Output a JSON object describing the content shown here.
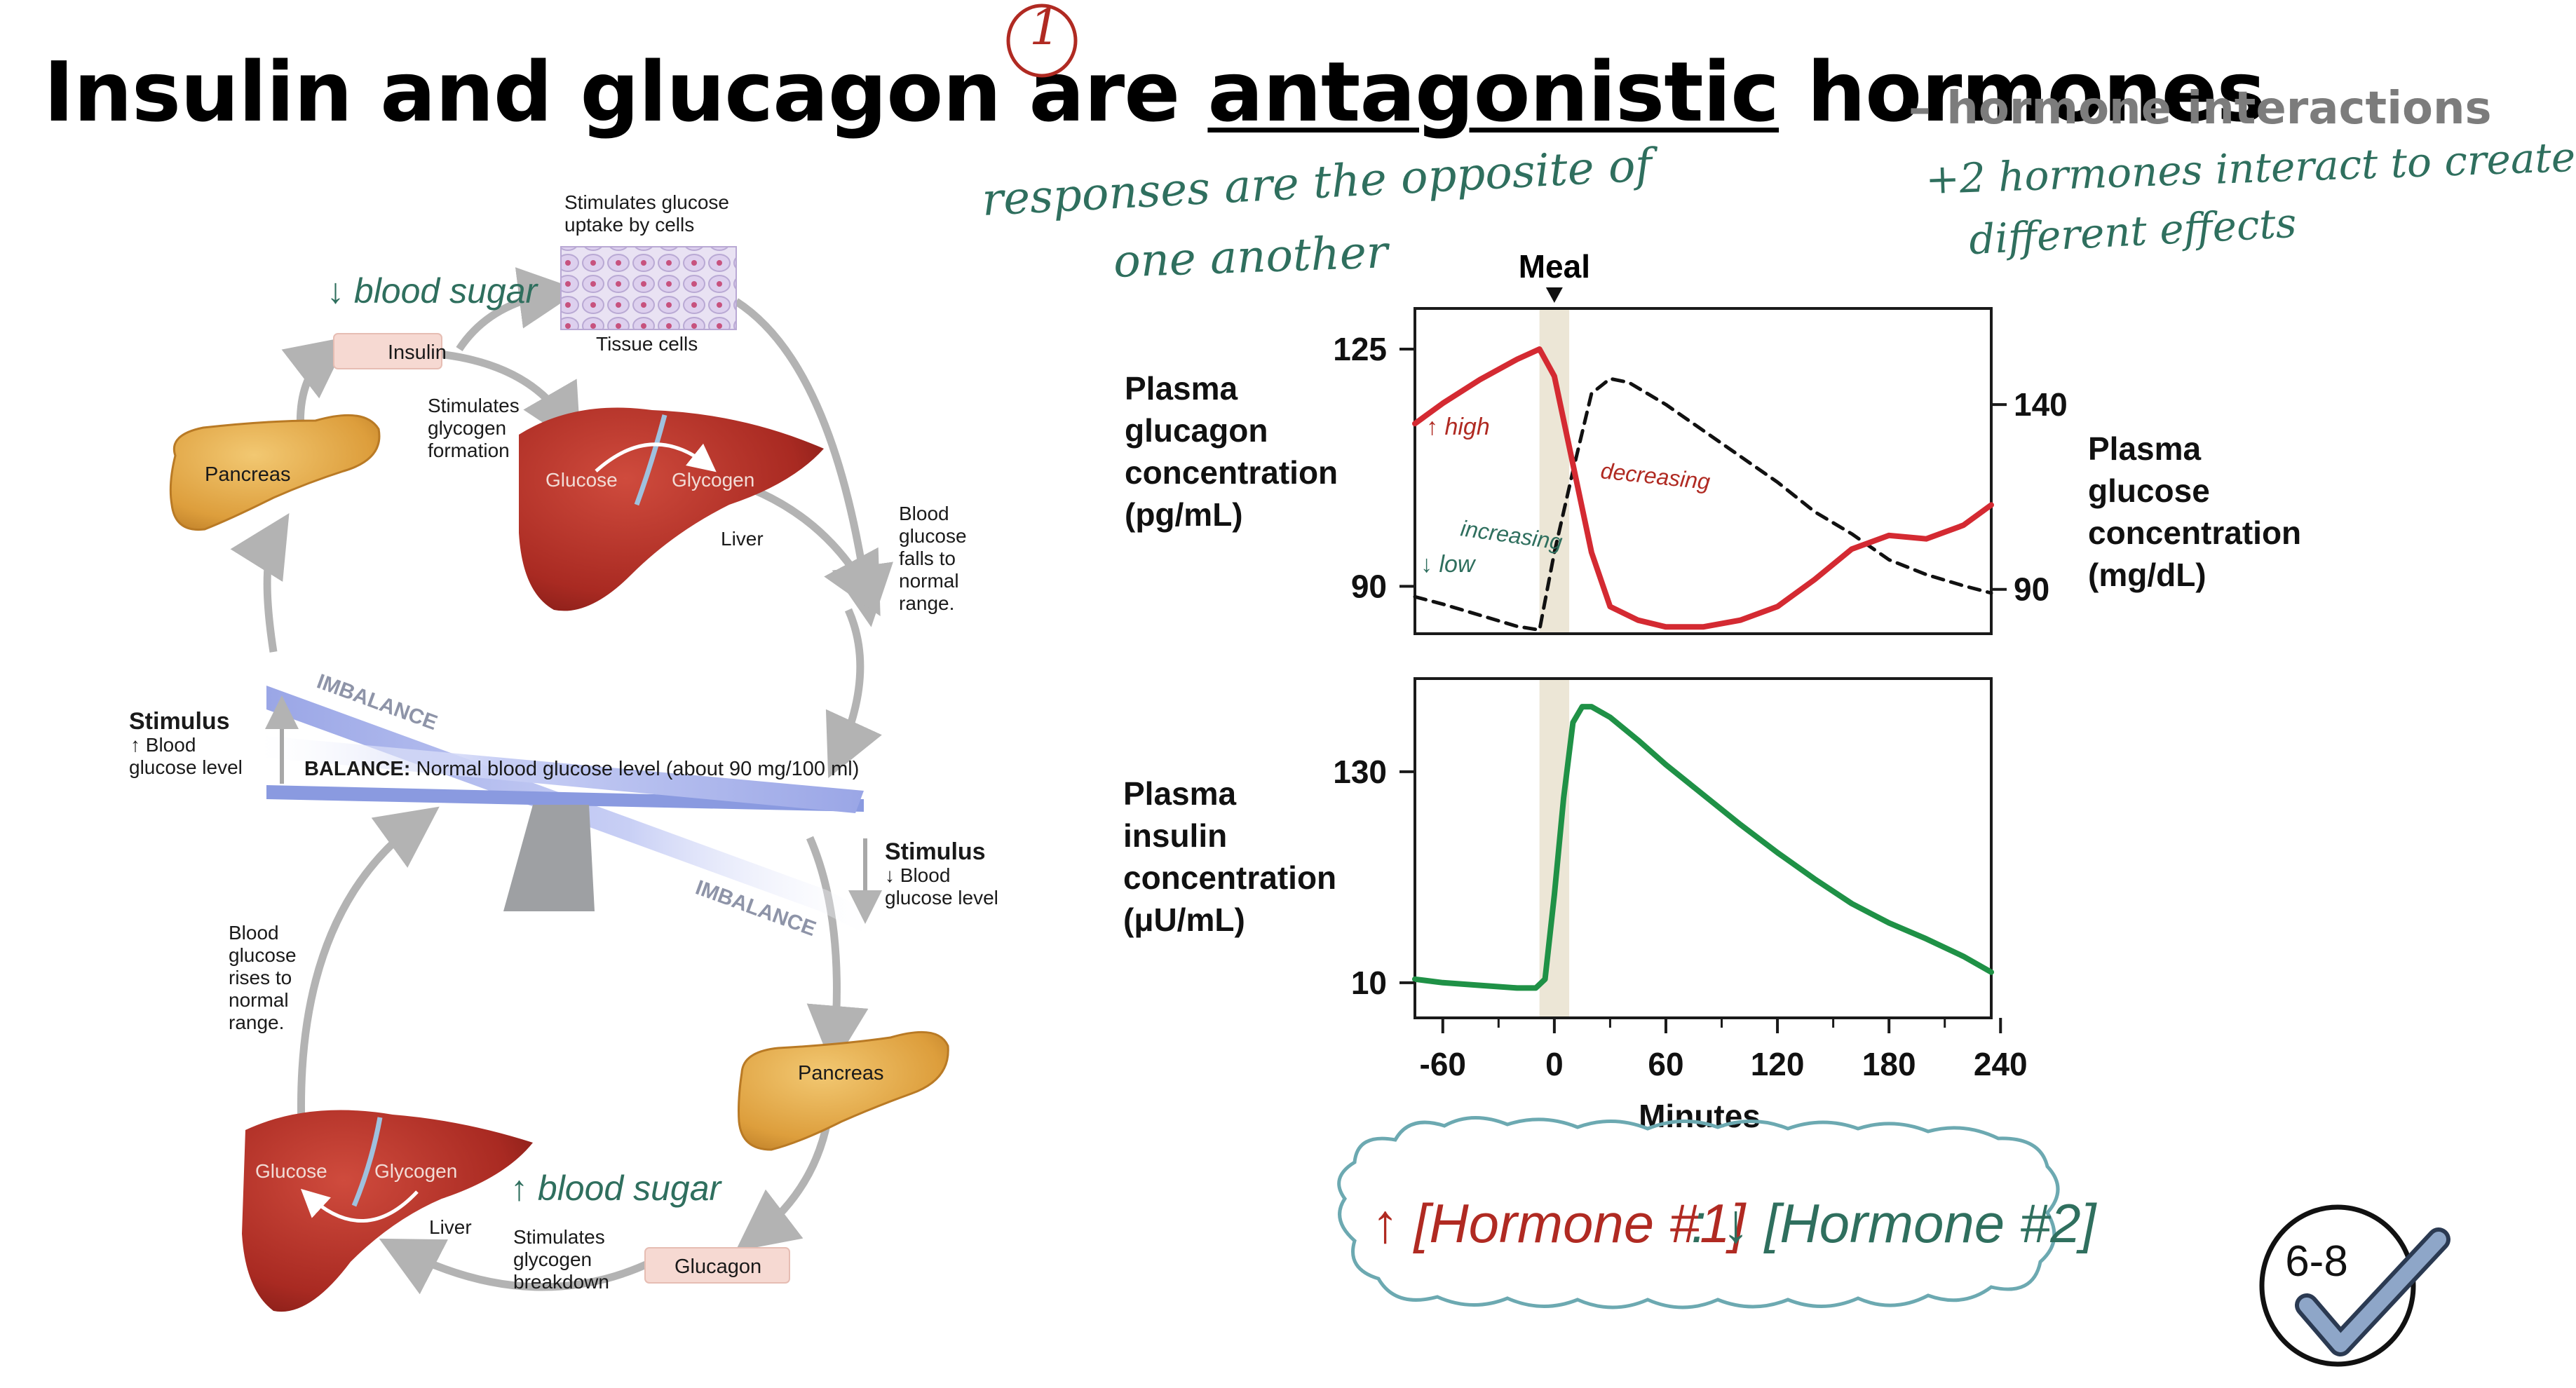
{
  "slide": {
    "title_parts": [
      "Insulin and glucagon are ",
      "antagonistic",
      " hormones"
    ],
    "subtitle": "– hormone interactions",
    "annotations": {
      "circle_number": "1",
      "antagonistic_note_1": "responses are the opposite of",
      "antagonistic_note_2": "one another",
      "interaction_note_1": "+2 hormones interact to create",
      "interaction_note_2": "different effects",
      "blood_sugar_down": "↓ blood sugar",
      "blood_sugar_up": "↑ blood sugar",
      "high": "↑ high",
      "low": "↓ low",
      "increasing": "increasing",
      "decreasing": "decreasing",
      "summary_hormone1": "↑ [Hormone #1]",
      "summary_colon": ":",
      "summary_hormone2": "↓ [Hormone #2]"
    },
    "badge": "6-8"
  },
  "homeostasis": {
    "stimulates_uptake": [
      "Stimulates glucose",
      "uptake by cells"
    ],
    "tissue_cells": "Tissue cells",
    "insulin": "Insulin",
    "stimulates_formation": [
      "Stimulates",
      "glycogen",
      "formation"
    ],
    "pancreas_top": "Pancreas",
    "glucose_top": "Glucose",
    "glycogen_top": "Glycogen",
    "liver_top": "Liver",
    "falls": [
      "Blood",
      "glucose",
      "falls to",
      "normal",
      "range."
    ],
    "imbalance_top": "IMBALANCE",
    "stimulus_top": [
      "Stimulus",
      "↑ Blood",
      "glucose level"
    ],
    "balance_label": "BALANCE:",
    "balance_text": " Normal blood glucose level (about 90 mg/100 ml)",
    "stimulus_bottom": [
      "Stimulus",
      "↓ Blood",
      "glucose level"
    ],
    "imbalance_bottom": "IMBALANCE",
    "rises": [
      "Blood",
      "glucose",
      "rises to",
      "normal",
      "range."
    ],
    "pancreas_bottom": "Pancreas",
    "glucose_bottom": "Glucose",
    "glycogen_bottom": "Glycogen",
    "liver_bottom": "Liver",
    "stimulates_breakdown": [
      "Stimulates",
      "glycogen",
      "breakdown"
    ],
    "glucagon": "Glucagon"
  },
  "chart_data": [
    {
      "type": "line",
      "meal_label": "Meal",
      "xlim": [
        -75,
        235
      ],
      "series": [
        {
          "name": "Plasma glucagon concentration (pg/mL)",
          "axis": "left",
          "ylabel": [
            "Plasma",
            "glucagon",
            "concentration",
            "(pg/mL)"
          ],
          "yticks": [
            90,
            125
          ],
          "ylim": [
            83,
            131
          ],
          "color": "#d42a32",
          "style": "solid",
          "x": [
            -75,
            -60,
            -40,
            -20,
            -8,
            0,
            10,
            20,
            30,
            45,
            60,
            80,
            100,
            120,
            140,
            160,
            180,
            200,
            220,
            235
          ],
          "y": [
            114,
            117,
            120.5,
            123.5,
            125,
            121,
            108,
            95,
            87,
            85,
            84,
            84,
            85,
            87,
            91,
            95.5,
            97.5,
            97,
            99,
            102
          ]
        },
        {
          "name": "Plasma glucose concentration (mg/dL)",
          "axis": "right",
          "ylabel": [
            "Plasma",
            "glucose",
            "concentration",
            "(mg/dL)"
          ],
          "yticks": [
            90,
            140
          ],
          "ylim": [
            78,
            166
          ],
          "color": "#111111",
          "style": "dashed",
          "x": [
            -75,
            -60,
            -40,
            -20,
            -8,
            0,
            10,
            20,
            30,
            40,
            60,
            80,
            100,
            120,
            140,
            160,
            180,
            200,
            220,
            235
          ],
          "y": [
            88,
            86,
            83,
            80,
            79,
            100,
            122,
            143,
            147,
            146,
            140,
            133,
            126,
            119,
            111,
            105,
            98,
            94,
            91,
            89
          ]
        }
      ]
    },
    {
      "type": "line",
      "xlabel": "Minutes",
      "xticks": [
        -60,
        0,
        60,
        120,
        180,
        240
      ],
      "xlim": [
        -75,
        235
      ],
      "series": [
        {
          "name": "Plasma insulin concentration (μU/mL)",
          "ylabel": [
            "Plasma",
            "insulin",
            "concentration",
            "(μU/mL)"
          ],
          "yticks": [
            10,
            130
          ],
          "ylim": [
            -10,
            183
          ],
          "color": "#1f9146",
          "style": "solid",
          "x": [
            -75,
            -60,
            -40,
            -20,
            -10,
            -5,
            0,
            5,
            10,
            15,
            20,
            30,
            45,
            60,
            80,
            100,
            120,
            140,
            160,
            180,
            200,
            220,
            235
          ],
          "y": [
            12,
            10,
            8.5,
            7,
            7,
            12,
            60,
            115,
            158,
            167,
            167,
            161,
            148,
            134,
            117,
            100,
            84,
            69,
            55,
            44,
            35,
            25,
            16
          ]
        }
      ]
    }
  ]
}
